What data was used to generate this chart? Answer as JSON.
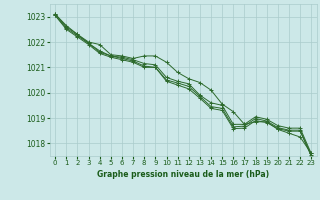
{
  "background_color": "#cce8e8",
  "grid_color": "#aacccc",
  "line_color": "#2d6a2d",
  "text_color": "#1a5c1a",
  "xlabel": "Graphe pression niveau de la mer (hPa)",
  "ylim": [
    1017.5,
    1023.5
  ],
  "xlim": [
    -0.5,
    23.5
  ],
  "yticks": [
    1018,
    1019,
    1020,
    1021,
    1022,
    1023
  ],
  "xticks": [
    0,
    1,
    2,
    3,
    4,
    5,
    6,
    7,
    8,
    9,
    10,
    11,
    12,
    13,
    14,
    15,
    16,
    17,
    18,
    19,
    20,
    21,
    22,
    23
  ],
  "hours": [
    0,
    1,
    2,
    3,
    4,
    5,
    6,
    7,
    8,
    9,
    10,
    11,
    12,
    13,
    14,
    15,
    16,
    17,
    18,
    19,
    20,
    21,
    22,
    23
  ],
  "line1": [
    1023.1,
    1022.65,
    1022.3,
    1022.0,
    1021.9,
    1021.5,
    1021.45,
    1021.35,
    1021.45,
    1021.45,
    1021.2,
    1020.8,
    1020.55,
    1020.4,
    1020.1,
    1019.55,
    1019.25,
    1018.75,
    1018.85,
    1018.85,
    1018.55,
    1018.4,
    1018.25,
    1017.6
  ],
  "line2": [
    1023.1,
    1022.6,
    1022.3,
    1021.95,
    1021.65,
    1021.45,
    1021.4,
    1021.3,
    1021.15,
    1021.1,
    1020.6,
    1020.45,
    1020.35,
    1019.9,
    1019.6,
    1019.5,
    1018.75,
    1018.75,
    1019.05,
    1018.95,
    1018.7,
    1018.6,
    1018.6,
    1017.6
  ],
  "line3": [
    1023.05,
    1022.55,
    1022.25,
    1021.95,
    1021.6,
    1021.45,
    1021.35,
    1021.25,
    1021.05,
    1021.0,
    1020.5,
    1020.38,
    1020.25,
    1019.85,
    1019.45,
    1019.38,
    1018.65,
    1018.68,
    1018.98,
    1018.88,
    1018.62,
    1018.52,
    1018.52,
    1017.52
  ],
  "line4": [
    1023.05,
    1022.5,
    1022.2,
    1021.9,
    1021.55,
    1021.4,
    1021.3,
    1021.2,
    1021.0,
    1021.0,
    1020.45,
    1020.3,
    1020.15,
    1019.78,
    1019.38,
    1019.3,
    1018.58,
    1018.6,
    1018.9,
    1018.82,
    1018.58,
    1018.48,
    1018.48,
    1017.5
  ]
}
